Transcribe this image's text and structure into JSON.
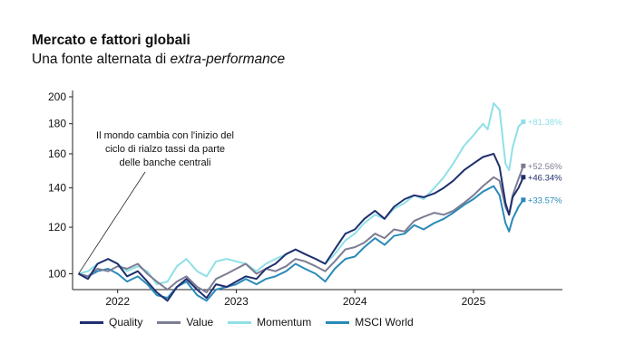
{
  "header": {
    "title": "Mercato e fattori globali",
    "subtitle_prefix": "Una fonte alternata di ",
    "subtitle_em": "extra-performance"
  },
  "chart_data": {
    "type": "line",
    "title": "Mercato e fattori globali",
    "subtitle": "Una fonte alternata di extra-performance",
    "xlabel": "",
    "ylabel": "",
    "x_ticks": [
      "2022",
      "2023",
      "2024",
      "2025"
    ],
    "x_tick_years": [
      2022,
      2023,
      2024,
      2025
    ],
    "xlim": [
      2021.62,
      2025.75
    ],
    "y_ticks": [
      100,
      120,
      140,
      160,
      180,
      200
    ],
    "ylim": [
      94,
      205
    ],
    "y_scale": "log",
    "grid": false,
    "legend_position": "bottom",
    "annotation": {
      "lines": [
        "Il mondo cambia con l'inizio del",
        "ciclo di rialzo tassi da parte",
        "delle banche centrali"
      ],
      "point": [
        2021.67,
        100
      ]
    },
    "series": [
      {
        "name": "Quality",
        "color": "#1f2f6e",
        "end_label": "+46.34%",
        "points": [
          [
            2021.67,
            100
          ],
          [
            2021.75,
            98
          ],
          [
            2021.83,
            104
          ],
          [
            2021.92,
            106
          ],
          [
            2022.0,
            104
          ],
          [
            2022.08,
            99
          ],
          [
            2022.17,
            101
          ],
          [
            2022.25,
            97
          ],
          [
            2022.33,
            93
          ],
          [
            2022.42,
            90
          ],
          [
            2022.5,
            95
          ],
          [
            2022.58,
            98
          ],
          [
            2022.67,
            94
          ],
          [
            2022.75,
            91
          ],
          [
            2022.83,
            96
          ],
          [
            2022.92,
            95
          ],
          [
            2023.0,
            97
          ],
          [
            2023.08,
            99
          ],
          [
            2023.17,
            98
          ],
          [
            2023.25,
            102
          ],
          [
            2023.33,
            104
          ],
          [
            2023.42,
            108
          ],
          [
            2023.5,
            110
          ],
          [
            2023.58,
            108
          ],
          [
            2023.67,
            106
          ],
          [
            2023.75,
            104
          ],
          [
            2023.83,
            110
          ],
          [
            2023.92,
            117
          ],
          [
            2024.0,
            119
          ],
          [
            2024.08,
            124
          ],
          [
            2024.17,
            128
          ],
          [
            2024.25,
            124
          ],
          [
            2024.33,
            130
          ],
          [
            2024.42,
            134
          ],
          [
            2024.5,
            136
          ],
          [
            2024.58,
            135
          ],
          [
            2024.67,
            137
          ],
          [
            2024.75,
            140
          ],
          [
            2024.83,
            144
          ],
          [
            2024.92,
            150
          ],
          [
            2025.0,
            154
          ],
          [
            2025.08,
            158
          ],
          [
            2025.17,
            160
          ],
          [
            2025.22,
            152
          ],
          [
            2025.27,
            132
          ],
          [
            2025.3,
            126
          ],
          [
            2025.33,
            135
          ],
          [
            2025.38,
            140
          ],
          [
            2025.42,
            146
          ]
        ]
      },
      {
        "name": "Value",
        "color": "#7c7c94",
        "end_label": "+52.56%",
        "points": [
          [
            2021.67,
            100
          ],
          [
            2021.75,
            99
          ],
          [
            2021.83,
            102
          ],
          [
            2021.92,
            101
          ],
          [
            2022.0,
            103
          ],
          [
            2022.08,
            102
          ],
          [
            2022.17,
            104
          ],
          [
            2022.25,
            100
          ],
          [
            2022.33,
            97
          ],
          [
            2022.42,
            94
          ],
          [
            2022.5,
            97
          ],
          [
            2022.58,
            99
          ],
          [
            2022.67,
            95
          ],
          [
            2022.75,
            93
          ],
          [
            2022.83,
            98
          ],
          [
            2022.92,
            100
          ],
          [
            2023.0,
            102
          ],
          [
            2023.08,
            104
          ],
          [
            2023.17,
            100
          ],
          [
            2023.25,
            102
          ],
          [
            2023.33,
            101
          ],
          [
            2023.42,
            103
          ],
          [
            2023.5,
            106
          ],
          [
            2023.58,
            105
          ],
          [
            2023.67,
            103
          ],
          [
            2023.75,
            101
          ],
          [
            2023.83,
            105
          ],
          [
            2023.92,
            110
          ],
          [
            2024.0,
            111
          ],
          [
            2024.08,
            113
          ],
          [
            2024.17,
            117
          ],
          [
            2024.25,
            115
          ],
          [
            2024.33,
            119
          ],
          [
            2024.42,
            118
          ],
          [
            2024.5,
            123
          ],
          [
            2024.58,
            125
          ],
          [
            2024.67,
            127
          ],
          [
            2024.75,
            126
          ],
          [
            2024.83,
            128
          ],
          [
            2024.92,
            132
          ],
          [
            2025.0,
            136
          ],
          [
            2025.08,
            141
          ],
          [
            2025.17,
            146
          ],
          [
            2025.22,
            144
          ],
          [
            2025.27,
            130
          ],
          [
            2025.3,
            126
          ],
          [
            2025.33,
            136
          ],
          [
            2025.38,
            145
          ],
          [
            2025.42,
            152.6
          ]
        ]
      },
      {
        "name": "Momentum",
        "color": "#8fe0e6",
        "end_label": "+81.38%",
        "points": [
          [
            2021.67,
            100
          ],
          [
            2021.75,
            101
          ],
          [
            2021.83,
            104
          ],
          [
            2021.92,
            106
          ],
          [
            2022.0,
            104
          ],
          [
            2022.08,
            101
          ],
          [
            2022.17,
            103
          ],
          [
            2022.25,
            101
          ],
          [
            2022.33,
            96
          ],
          [
            2022.42,
            97
          ],
          [
            2022.5,
            103
          ],
          [
            2022.58,
            106
          ],
          [
            2022.67,
            101
          ],
          [
            2022.75,
            99
          ],
          [
            2022.83,
            105
          ],
          [
            2022.92,
            106
          ],
          [
            2023.0,
            105
          ],
          [
            2023.08,
            104
          ],
          [
            2023.17,
            101
          ],
          [
            2023.25,
            104
          ],
          [
            2023.33,
            106
          ],
          [
            2023.42,
            108
          ],
          [
            2023.5,
            110
          ],
          [
            2023.58,
            108
          ],
          [
            2023.67,
            106
          ],
          [
            2023.75,
            104
          ],
          [
            2023.83,
            108
          ],
          [
            2023.92,
            114
          ],
          [
            2024.0,
            117
          ],
          [
            2024.08,
            122
          ],
          [
            2024.17,
            126
          ],
          [
            2024.25,
            124
          ],
          [
            2024.33,
            129
          ],
          [
            2024.42,
            132
          ],
          [
            2024.5,
            136
          ],
          [
            2024.58,
            134
          ],
          [
            2024.67,
            140
          ],
          [
            2024.75,
            146
          ],
          [
            2024.83,
            154
          ],
          [
            2024.92,
            165
          ],
          [
            2025.0,
            172
          ],
          [
            2025.08,
            180
          ],
          [
            2025.12,
            176
          ],
          [
            2025.17,
            195
          ],
          [
            2025.22,
            190
          ],
          [
            2025.27,
            154
          ],
          [
            2025.3,
            150
          ],
          [
            2025.33,
            164
          ],
          [
            2025.38,
            178
          ],
          [
            2025.42,
            181.4
          ]
        ]
      },
      {
        "name": "MSCI World",
        "color": "#2a8ab8",
        "end_label": "+33.57%",
        "points": [
          [
            2021.67,
            100
          ],
          [
            2021.75,
            99
          ],
          [
            2021.83,
            101
          ],
          [
            2021.92,
            102
          ],
          [
            2022.0,
            100
          ],
          [
            2022.08,
            97
          ],
          [
            2022.17,
            99
          ],
          [
            2022.25,
            96
          ],
          [
            2022.33,
            92
          ],
          [
            2022.42,
            91
          ],
          [
            2022.5,
            95
          ],
          [
            2022.58,
            97
          ],
          [
            2022.67,
            92
          ],
          [
            2022.75,
            90
          ],
          [
            2022.83,
            94
          ],
          [
            2022.92,
            95
          ],
          [
            2023.0,
            96
          ],
          [
            2023.08,
            98
          ],
          [
            2023.17,
            96
          ],
          [
            2023.25,
            98
          ],
          [
            2023.33,
            99
          ],
          [
            2023.42,
            101
          ],
          [
            2023.5,
            104
          ],
          [
            2023.58,
            102
          ],
          [
            2023.67,
            100
          ],
          [
            2023.75,
            97
          ],
          [
            2023.83,
            102
          ],
          [
            2023.92,
            106
          ],
          [
            2024.0,
            107
          ],
          [
            2024.08,
            111
          ],
          [
            2024.17,
            115
          ],
          [
            2024.25,
            112
          ],
          [
            2024.33,
            116
          ],
          [
            2024.42,
            117
          ],
          [
            2024.5,
            121
          ],
          [
            2024.58,
            119
          ],
          [
            2024.67,
            122
          ],
          [
            2024.75,
            124
          ],
          [
            2024.83,
            127
          ],
          [
            2024.92,
            131
          ],
          [
            2025.0,
            134
          ],
          [
            2025.08,
            138
          ],
          [
            2025.17,
            141
          ],
          [
            2025.22,
            136
          ],
          [
            2025.27,
            122
          ],
          [
            2025.3,
            118
          ],
          [
            2025.33,
            124
          ],
          [
            2025.38,
            130
          ],
          [
            2025.42,
            133.6
          ]
        ]
      }
    ]
  }
}
